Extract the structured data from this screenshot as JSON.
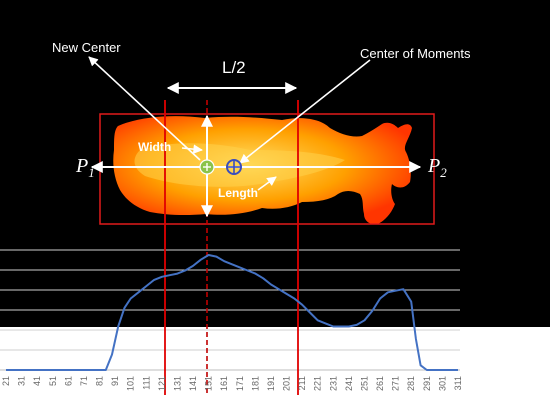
{
  "labels": {
    "new_center": "New Center",
    "center_of_moments": "Center of Moments",
    "half_length": "L/2",
    "width": "Width",
    "length": "Length",
    "p1_main": "P",
    "p1_sub": "1",
    "p2_main": "P",
    "p2_sub": "2"
  },
  "colors": {
    "background_top": "#000000",
    "bounding_box": "#e11b1b",
    "profile_line": "#4472c4",
    "vertical_markers": "#e00000",
    "new_center_marker": "#8bc34a",
    "moments_marker": "#3a4dbd"
  },
  "chart_data": {
    "type": "line",
    "x_tick_labels": [
      "21",
      "31",
      "41",
      "51",
      "61",
      "71",
      "81",
      "91",
      "101",
      "111",
      "121",
      "131",
      "141",
      "151",
      "161",
      "171",
      "181",
      "191",
      "201",
      "211",
      "221",
      "231",
      "241",
      "251",
      "261",
      "271",
      "281",
      "291",
      "301",
      "311"
    ],
    "x": [
      21,
      31,
      41,
      51,
      61,
      71,
      81,
      85,
      89,
      93,
      97,
      101,
      106,
      111,
      116,
      121,
      126,
      131,
      136,
      141,
      146,
      151,
      156,
      161,
      166,
      171,
      176,
      181,
      186,
      191,
      196,
      201,
      206,
      211,
      216,
      221,
      226,
      231,
      236,
      241,
      246,
      251,
      256,
      261,
      266,
      271,
      276,
      281,
      284,
      287,
      291,
      301,
      311
    ],
    "values": [
      0,
      0,
      0,
      0,
      0,
      0,
      0,
      0,
      10,
      28,
      40,
      46,
      50,
      54,
      58,
      60,
      61,
      62,
      64,
      67,
      71,
      74,
      73,
      70,
      68,
      66,
      64,
      62,
      59,
      55,
      52,
      49,
      46,
      42,
      37,
      32,
      30,
      28,
      28,
      28,
      29,
      32,
      38,
      46,
      50,
      51,
      52,
      44,
      20,
      3,
      0,
      0,
      0
    ]
  }
}
